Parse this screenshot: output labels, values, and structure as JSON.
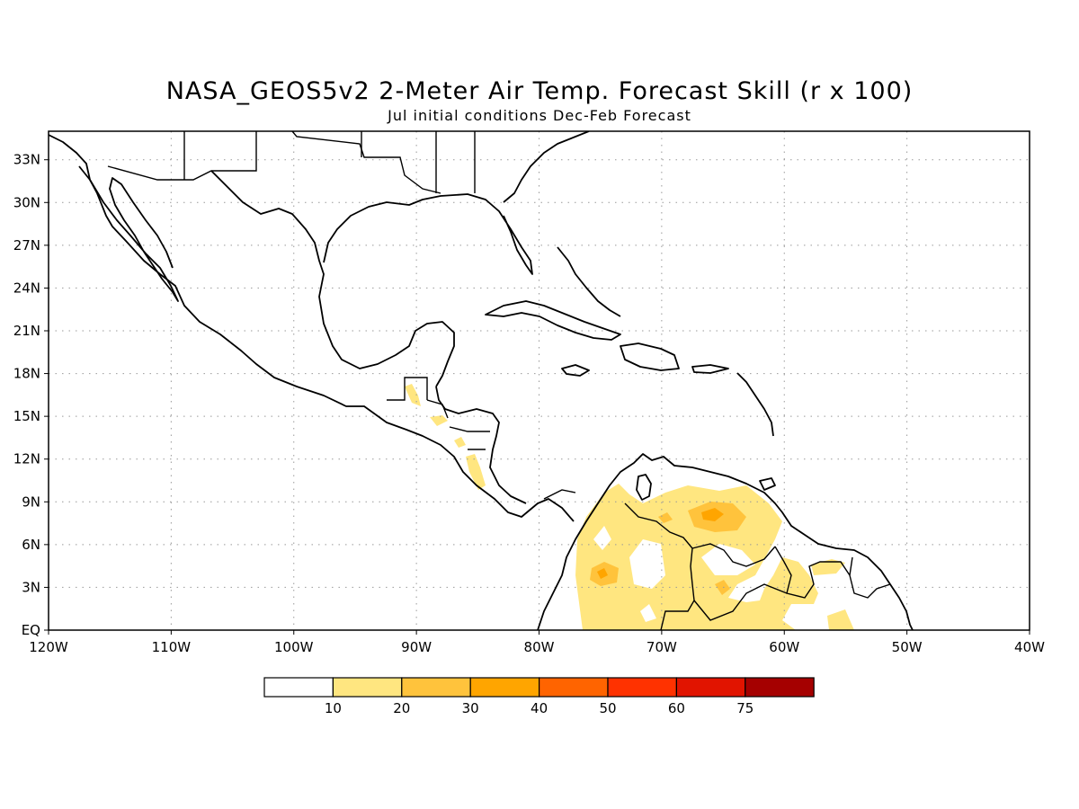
{
  "title": "NASA_GEOS5v2 2-Meter Air Temp. Forecast Skill (r x 100)",
  "subtitle": "Jul initial conditions   Dec-Feb Forecast",
  "map": {
    "lon_labels": [
      "120W",
      "110W",
      "100W",
      "90W",
      "80W",
      "70W",
      "60W",
      "50W",
      "40W"
    ],
    "lat_labels": [
      "EQ",
      "3N",
      "6N",
      "9N",
      "12N",
      "15N",
      "18N",
      "21N",
      "24N",
      "27N",
      "30N",
      "33N"
    ],
    "lon_range": [
      -120,
      -40
    ],
    "lat_range": [
      0,
      35
    ],
    "grid": "dotted"
  },
  "colorbar": {
    "labels": [
      "10",
      "20",
      "30",
      "40",
      "50",
      "60",
      "75"
    ],
    "colors": [
      "#ffffff",
      "#ffe680",
      "#ffc33c",
      "#ffa500",
      "#ff6400",
      "#ff3200",
      "#e11400",
      "#a50000"
    ]
  }
}
